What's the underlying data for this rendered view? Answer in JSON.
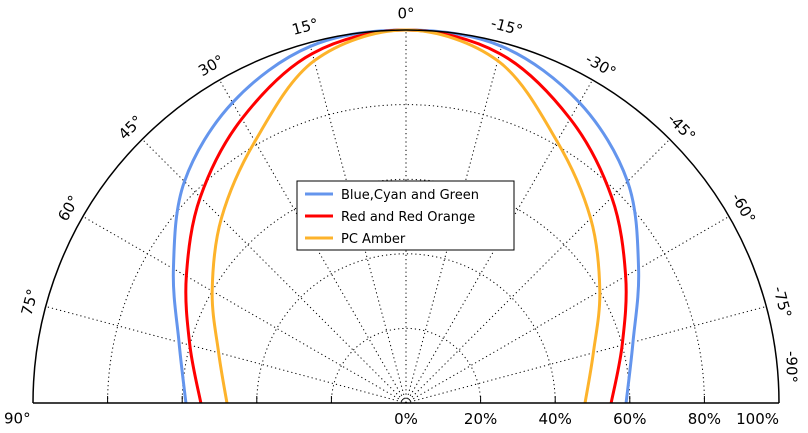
{
  "chart_data": {
    "type": "polar-line",
    "theta_ticks": [
      90,
      75,
      60,
      45,
      30,
      15,
      0,
      -15,
      -30,
      -45,
      -60,
      -75,
      -90
    ],
    "r_ticks": [
      0,
      20,
      40,
      60,
      80,
      100
    ],
    "r_range": [
      0,
      100
    ],
    "theta_range": [
      -90,
      90
    ],
    "grid": true,
    "legend_position": "center",
    "series": [
      {
        "name": "Blue,Cyan and Green",
        "color": "#6495ED",
        "theta": [
          0,
          15,
          30,
          45,
          60,
          75,
          90
        ],
        "r": [
          100,
          99,
          93,
          84,
          72,
          63,
          59
        ]
      },
      {
        "name": "Red and Red Orange",
        "color": "#FF0000",
        "theta": [
          0,
          15,
          30,
          45,
          60,
          75,
          90
        ],
        "r": [
          100,
          97,
          88,
          78,
          68,
          60,
          55
        ]
      },
      {
        "name": "PC Amber",
        "color": "#FDB32B",
        "theta": [
          0,
          15,
          30,
          45,
          60,
          75,
          90
        ],
        "r": [
          100,
          95,
          81,
          70,
          60,
          52,
          48
        ]
      }
    ]
  }
}
